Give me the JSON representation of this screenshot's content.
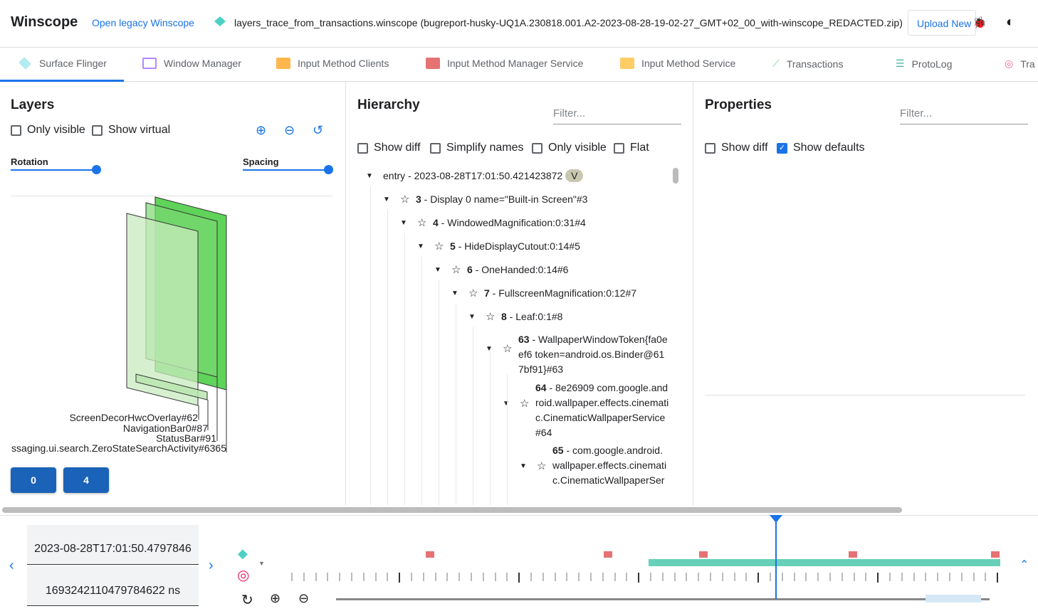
{
  "header": {
    "title": "Winscope",
    "legacy_link": "Open legacy Winscope",
    "filename": "layers_trace_from_transactions.winscope (bugreport-husky-UQ1A.230818.001.A2-2023-08-28-19-02-27_GMT+02_00_with-winscope_REDACTED.zip)",
    "upload_label": "Upload New",
    "icons": [
      "layers-icon",
      "bug-icon",
      "theme-toggle-icon"
    ]
  },
  "tabs": [
    {
      "label": "Surface Flinger",
      "icon": "layers-icon",
      "color": "#4dd0c4",
      "active": true
    },
    {
      "label": "Window Manager",
      "icon": "window-icon",
      "color": "#b388ff"
    },
    {
      "label": "Input Method Clients",
      "icon": "keyboard-icon",
      "color": "#ffb74d"
    },
    {
      "label": "Input Method Manager Service",
      "icon": "keyboard-icon",
      "color": "#e57373"
    },
    {
      "label": "Input Method Service",
      "icon": "keyboard-icon",
      "color": "#ffcc66"
    },
    {
      "label": "Transactions",
      "icon": "chart-line-icon",
      "color": "#81c784"
    },
    {
      "label": "ProtoLog",
      "icon": "list-icon",
      "color": "#4db6ac"
    },
    {
      "label": "Tra",
      "icon": "rings-icon",
      "color": "#f06292"
    }
  ],
  "layers": {
    "title": "Layers",
    "only_visible": "Only visible",
    "show_virtual": "Show virtual",
    "rotation": "Rotation",
    "spacing": "Spacing",
    "rotation_value": 1.0,
    "spacing_value": 1.0,
    "labels": [
      "ScreenDecorHwcOverlay#62",
      "NavigationBar0#87",
      "StatusBar#91",
      "ssaging.ui.search.ZeroStateSearchActivity#6365"
    ],
    "display_buttons": [
      "0",
      "4"
    ]
  },
  "hierarchy": {
    "title": "Hierarchy",
    "filter_placeholder": "Filter...",
    "show_diff": "Show diff",
    "simplify_names": "Simplify names",
    "only_visible": "Only visible",
    "flat": "Flat",
    "entry_label": "entry",
    "entry_time": "2023-08-28T17:01:50.421423872",
    "entry_badge": "V",
    "rows": [
      {
        "id": "3",
        "name": "Display 0 name=\"Built-in Screen\"#3"
      },
      {
        "id": "4",
        "name": "WindowedMagnification:0:31#4"
      },
      {
        "id": "5",
        "name": "HideDisplayCutout:0:14#5"
      },
      {
        "id": "6",
        "name": "OneHanded:0:14#6"
      },
      {
        "id": "7",
        "name": "FullscreenMagnification:0:12#7"
      },
      {
        "id": "8",
        "name": "Leaf:0:1#8"
      },
      {
        "id": "63",
        "name": "WallpaperWindowToken{fa0eef6 token=android.os.Binder@617bf91}#63"
      },
      {
        "id": "64",
        "name": "8e26909 com.google.android.wallpaper.effects.cinematic.CinematicWallpaperService#64"
      },
      {
        "id": "65",
        "name": "com.google.android.wallpaper.effects.cinematic.CinematicWallpaperSer"
      }
    ]
  },
  "properties": {
    "title": "Properties",
    "filter_placeholder": "Filter...",
    "show_diff": "Show diff",
    "show_defaults": "Show defaults",
    "show_defaults_checked": true
  },
  "timeline": {
    "timestamp": "2023-08-28T17:01:50.4797846",
    "ns": "1693242110479784622 ns",
    "cursor_color": "#1a73e8"
  }
}
